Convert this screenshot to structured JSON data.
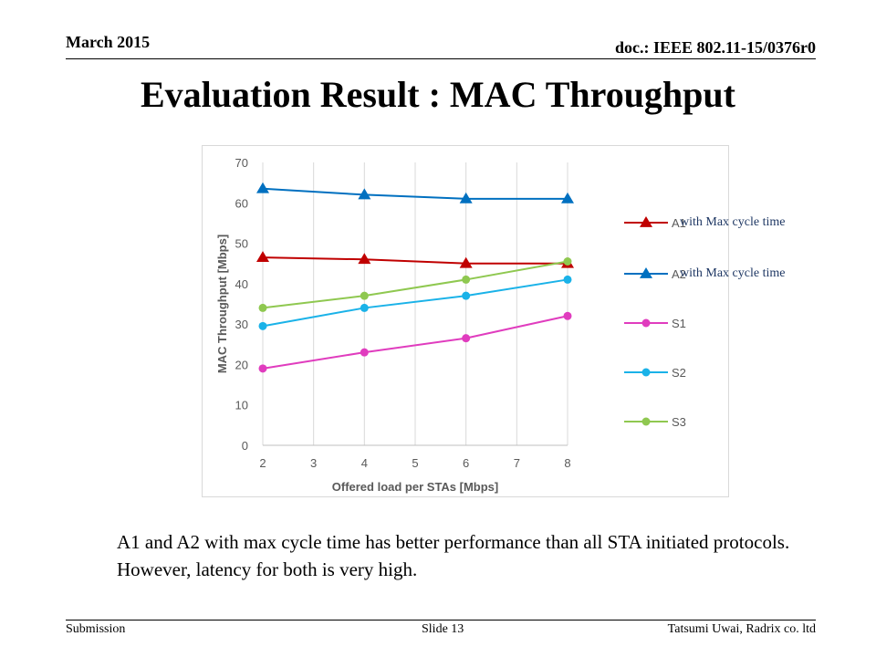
{
  "header": {
    "date": "March 2015",
    "doc_id": "doc.: IEEE 802.11-15/0376r0"
  },
  "title": "Evaluation Result : MAC Throughput",
  "annotations": {
    "a1_note": "with Max cycle time",
    "a2_note": "with Max cycle time"
  },
  "body_text": "A1 and A2 with max cycle time has better performance than all STA initiated protocols. However, latency for both is very high.",
  "footer": {
    "left": "Submission",
    "center": "Slide 13",
    "right": "Tatsumi  Uwai, Radrix co. ltd"
  },
  "chart_data": {
    "type": "line",
    "xlabel": "Offered load per STAs [Mbps]",
    "ylabel": "MAC Throughput [Mbps]",
    "xlim": [
      2,
      8
    ],
    "ylim": [
      0,
      70
    ],
    "x_ticks": [
      2,
      3,
      4,
      5,
      6,
      7,
      8
    ],
    "y_ticks": [
      0,
      10,
      20,
      30,
      40,
      50,
      60,
      70
    ],
    "grid": "vertical",
    "legend_position": "right",
    "series": [
      {
        "name": "A1",
        "marker": "triangle",
        "color": "#c00000",
        "x": [
          2,
          4,
          6,
          8
        ],
        "values": [
          46.5,
          46,
          45,
          45
        ]
      },
      {
        "name": "A2",
        "marker": "triangle",
        "color": "#0070c0",
        "x": [
          2,
          4,
          6,
          8
        ],
        "values": [
          63.5,
          62,
          61,
          61
        ]
      },
      {
        "name": "S1",
        "marker": "circle",
        "color": "#e03cbe",
        "x": [
          2,
          4,
          6,
          8
        ],
        "values": [
          19,
          23,
          26.5,
          32
        ]
      },
      {
        "name": "S2",
        "marker": "circle",
        "color": "#1ab2e8",
        "x": [
          2,
          4,
          6,
          8
        ],
        "values": [
          29.5,
          34,
          37,
          41
        ]
      },
      {
        "name": "S3",
        "marker": "circle",
        "color": "#8fc850",
        "x": [
          2,
          4,
          6,
          8
        ],
        "values": [
          34,
          37,
          41,
          45.5
        ]
      }
    ]
  }
}
